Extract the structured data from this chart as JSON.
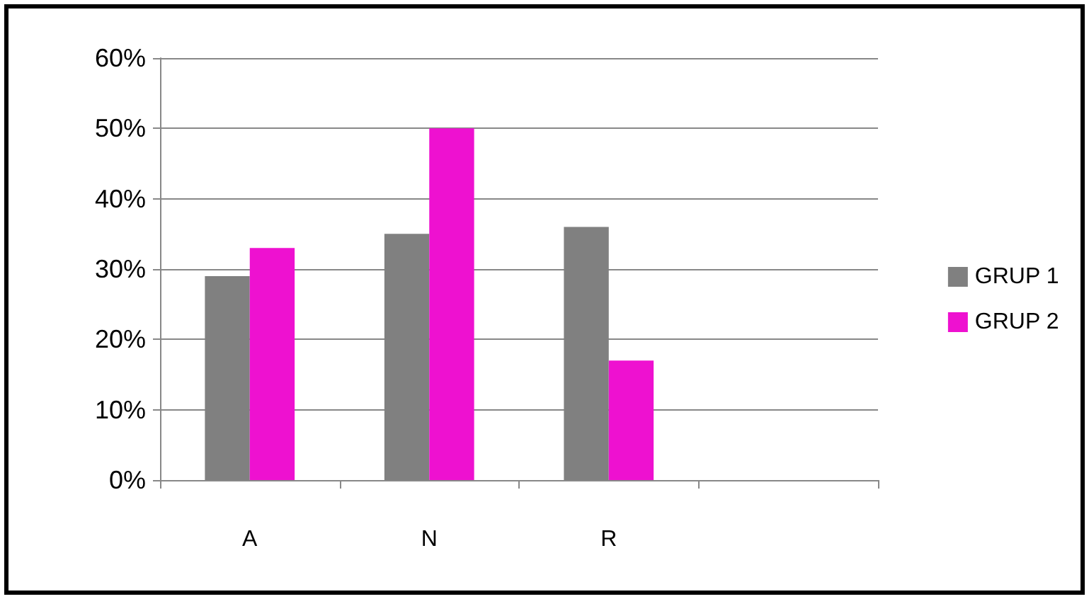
{
  "chart_data": {
    "type": "bar",
    "categories": [
      "A",
      "N",
      "R",
      null
    ],
    "series": [
      {
        "name": "GRUP 1",
        "color": "#808080",
        "values": [
          29,
          35,
          36,
          null
        ]
      },
      {
        "name": "GRUP 2",
        "color": "#ee11d0",
        "values": [
          33,
          50,
          17,
          null
        ]
      }
    ],
    "ylim": [
      0,
      60
    ],
    "yticks": [
      {
        "value": 0,
        "label": "0%"
      },
      {
        "value": 10,
        "label": "10%"
      },
      {
        "value": 20,
        "label": "20%"
      },
      {
        "value": 30,
        "label": "30%"
      },
      {
        "value": 40,
        "label": "40%"
      },
      {
        "value": 50,
        "label": "50%"
      },
      {
        "value": 60,
        "label": "60%"
      }
    ],
    "grid": "y",
    "legend": "right"
  }
}
